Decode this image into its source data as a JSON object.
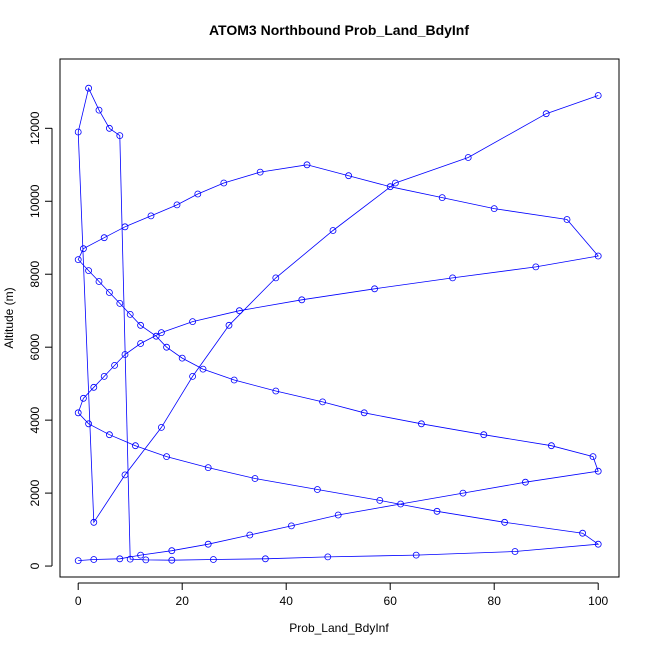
{
  "chart_data": {
    "type": "scatter",
    "title": "ATOM3 Northbound Prob_Land_BdyInf",
    "xlabel": "Prob_Land_BdyInf",
    "ylabel": "Altitude (m)",
    "xlim": [
      -3.5,
      104
    ],
    "ylim": [
      -300,
      13900
    ],
    "x_ticks": [
      0,
      20,
      40,
      60,
      80,
      100
    ],
    "x_tick_labels": [
      "0",
      "20",
      "40",
      "60",
      "80",
      "100"
    ],
    "y_ticks": [
      0,
      2000,
      4000,
      6000,
      8000,
      10000,
      12000
    ],
    "y_tick_labels": [
      "0",
      "2000",
      "4000",
      "6000",
      "8000",
      "10000",
      "12000"
    ],
    "grid": false,
    "legend": "none",
    "style": "open circles joined by lines (type='o')",
    "series": [
      {
        "color": "#0000ff",
        "x": [
          0,
          3,
          8,
          12,
          18,
          25,
          33,
          41,
          50,
          62,
          74,
          86,
          100,
          99,
          91,
          78,
          66,
          55,
          47,
          38,
          30,
          24,
          20,
          17,
          15,
          12,
          10,
          8,
          6,
          4,
          2,
          0,
          1,
          5,
          9,
          14,
          19,
          23,
          28,
          35,
          44,
          52,
          60,
          70,
          80,
          94,
          100,
          88,
          72,
          57,
          43,
          31,
          22,
          16,
          12,
          9,
          7,
          5,
          3,
          1,
          0,
          2,
          6,
          11,
          17,
          25,
          34,
          46,
          58,
          69,
          82,
          97,
          100,
          84,
          65,
          48,
          36,
          26,
          18,
          13,
          10,
          8,
          6,
          4,
          2,
          0,
          3,
          9,
          16,
          22,
          29,
          38,
          49,
          61,
          75,
          90,
          100
        ],
        "y": [
          150,
          180,
          200,
          300,
          420,
          600,
          850,
          1100,
          1400,
          1700,
          2000,
          2300,
          2600,
          3000,
          3300,
          3600,
          3900,
          4200,
          4500,
          4800,
          5100,
          5400,
          5700,
          6000,
          6300,
          6600,
          6900,
          7200,
          7500,
          7800,
          8100,
          8400,
          8700,
          9000,
          9300,
          9600,
          9900,
          10200,
          10500,
          10800,
          11000,
          10700,
          10400,
          10100,
          9800,
          9500,
          8500,
          8200,
          7900,
          7600,
          7300,
          7000,
          6700,
          6400,
          6100,
          5800,
          5500,
          5200,
          4900,
          4600,
          4200,
          3900,
          3600,
          3300,
          3000,
          2700,
          2400,
          2100,
          1800,
          1500,
          1200,
          900,
          600,
          400,
          300,
          250,
          200,
          180,
          160,
          170,
          190,
          11800,
          12000,
          12500,
          13100,
          11900,
          1200,
          2500,
          3800,
          5200,
          6600,
          7900,
          9200,
          10500,
          11200,
          12400,
          12900
        ]
      }
    ]
  }
}
